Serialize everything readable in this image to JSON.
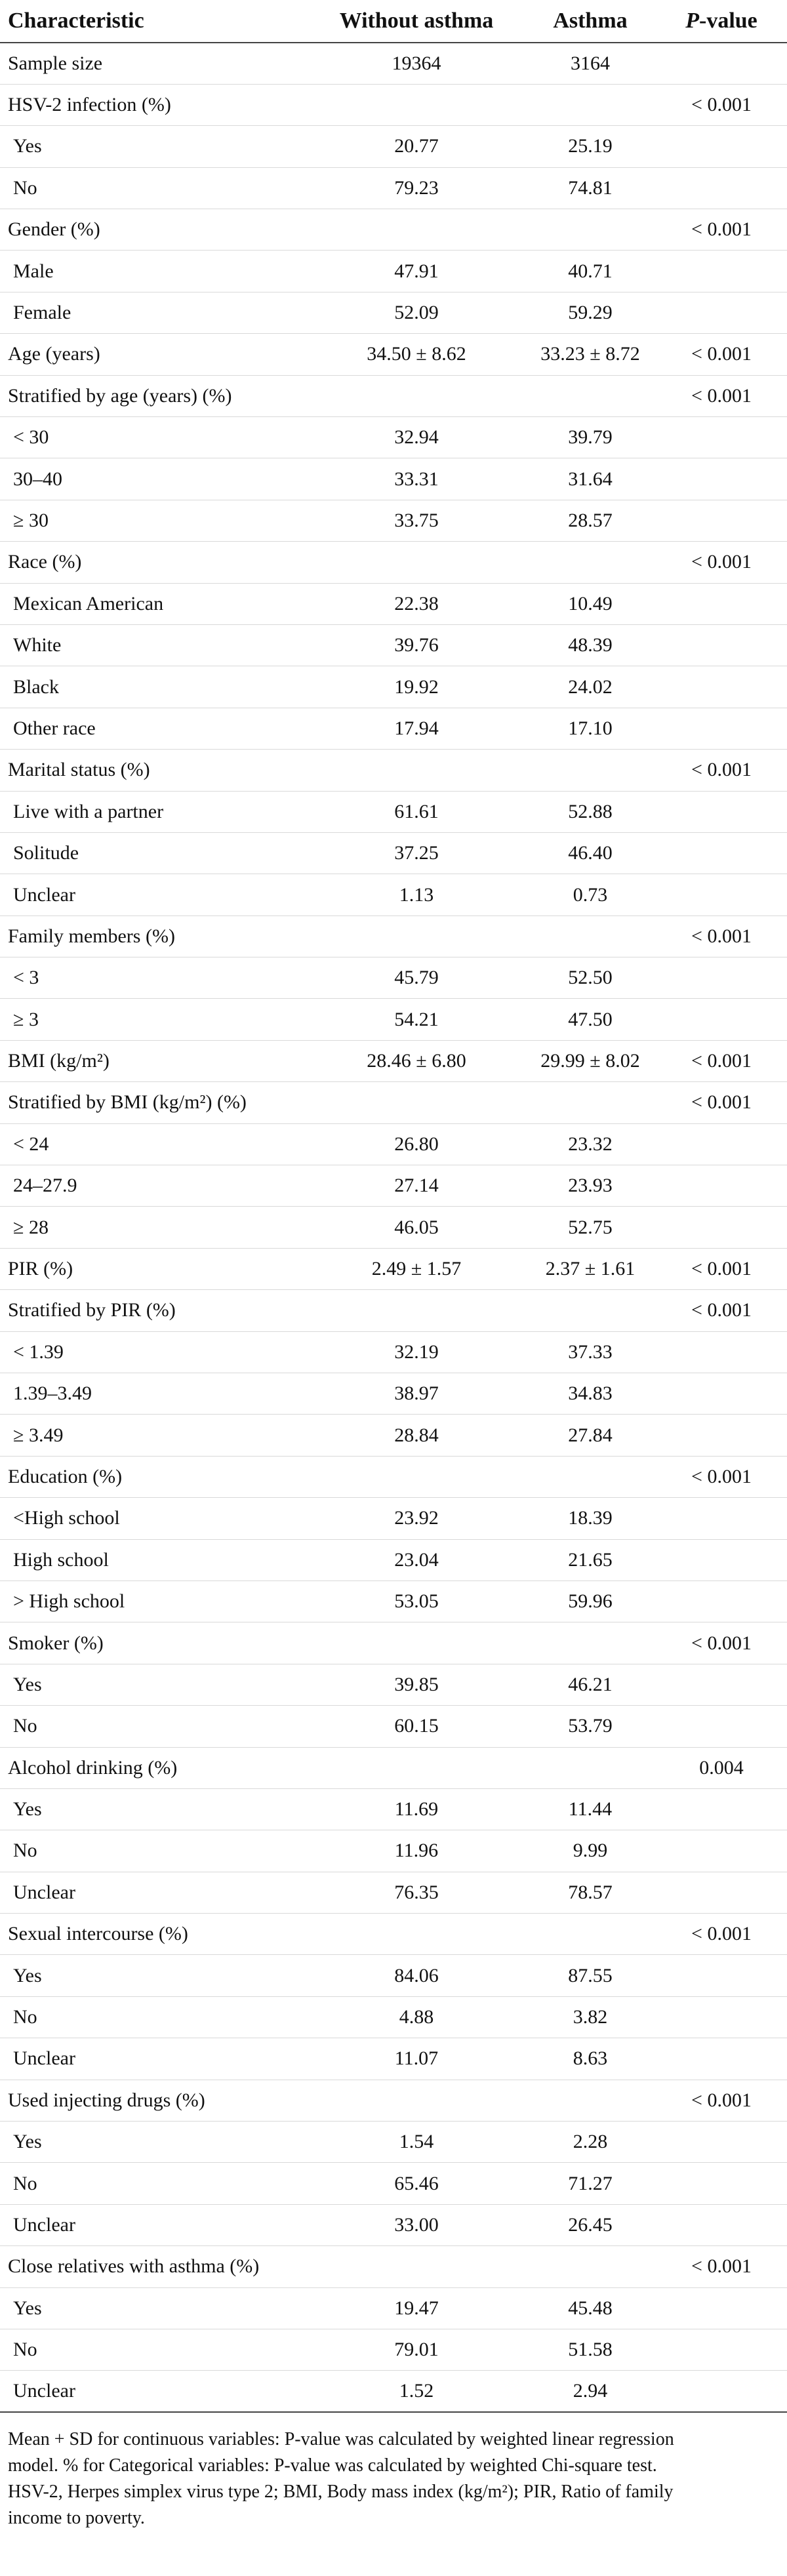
{
  "table": {
    "headers": [
      "Characteristic",
      "Without asthma",
      "Asthma",
      "-value"
    ],
    "header_p_prefix": "P",
    "rows": [
      {
        "label": "Sample size",
        "without": "19364",
        "asthma": "3164",
        "p": ""
      },
      {
        "label": "HSV-2 infection (%)",
        "without": "",
        "asthma": "",
        "p": "< 0.001"
      },
      {
        "label": "Yes",
        "without": "20.77",
        "asthma": "25.19",
        "p": "",
        "sub": true
      },
      {
        "label": "No",
        "without": "79.23",
        "asthma": "74.81",
        "p": "",
        "sub": true
      },
      {
        "label": "Gender (%)",
        "without": "",
        "asthma": "",
        "p": "< 0.001"
      },
      {
        "label": "Male",
        "without": "47.91",
        "asthma": "40.71",
        "p": "",
        "sub": true
      },
      {
        "label": "Female",
        "without": "52.09",
        "asthma": "59.29",
        "p": "",
        "sub": true
      },
      {
        "label": "Age (years)",
        "without": "34.50 ± 8.62",
        "asthma": "33.23 ± 8.72",
        "p": "< 0.001"
      },
      {
        "label": "Stratified by age (years) (%)",
        "without": "",
        "asthma": "",
        "p": "< 0.001"
      },
      {
        "label": "< 30",
        "without": "32.94",
        "asthma": "39.79",
        "p": "",
        "sub": true
      },
      {
        "label": "30–40",
        "without": "33.31",
        "asthma": "31.64",
        "p": "",
        "sub": true
      },
      {
        "label": "≥ 30",
        "without": "33.75",
        "asthma": "28.57",
        "p": "",
        "sub": true
      },
      {
        "label": "Race (%)",
        "without": "",
        "asthma": "",
        "p": "< 0.001"
      },
      {
        "label": "Mexican American",
        "without": "22.38",
        "asthma": "10.49",
        "p": "",
        "sub": true
      },
      {
        "label": "White",
        "without": "39.76",
        "asthma": "48.39",
        "p": "",
        "sub": true
      },
      {
        "label": "Black",
        "without": "19.92",
        "asthma": "24.02",
        "p": "",
        "sub": true
      },
      {
        "label": "Other race",
        "without": "17.94",
        "asthma": "17.10",
        "p": "",
        "sub": true
      },
      {
        "label": "Marital status (%)",
        "without": "",
        "asthma": "",
        "p": "< 0.001"
      },
      {
        "label": "Live with a partner",
        "without": "61.61",
        "asthma": "52.88",
        "p": "",
        "sub": true
      },
      {
        "label": "Solitude",
        "without": "37.25",
        "asthma": "46.40",
        "p": "",
        "sub": true
      },
      {
        "label": "Unclear",
        "without": "1.13",
        "asthma": "0.73",
        "p": "",
        "sub": true
      },
      {
        "label": "Family members (%)",
        "without": "",
        "asthma": "",
        "p": "< 0.001"
      },
      {
        "label": "< 3",
        "without": "45.79",
        "asthma": "52.50",
        "p": "",
        "sub": true
      },
      {
        "label": "≥ 3",
        "without": "54.21",
        "asthma": "47.50",
        "p": "",
        "sub": true
      },
      {
        "label": "BMI (kg/m²)",
        "without": "28.46 ± 6.80",
        "asthma": "29.99 ± 8.02",
        "p": "< 0.001"
      },
      {
        "label": "Stratified by BMI (kg/m²) (%)",
        "without": "",
        "asthma": "",
        "p": "< 0.001"
      },
      {
        "label": "< 24",
        "without": "26.80",
        "asthma": "23.32",
        "p": "",
        "sub": true
      },
      {
        "label": "24–27.9",
        "without": "27.14",
        "asthma": "23.93",
        "p": "",
        "sub": true
      },
      {
        "label": "≥ 28",
        "without": "46.05",
        "asthma": "52.75",
        "p": "",
        "sub": true
      },
      {
        "label": "PIR (%)",
        "without": "2.49 ± 1.57",
        "asthma": "2.37 ± 1.61",
        "p": "< 0.001"
      },
      {
        "label": "Stratified by PIR (%)",
        "without": "",
        "asthma": "",
        "p": "< 0.001"
      },
      {
        "label": "< 1.39",
        "without": "32.19",
        "asthma": "37.33",
        "p": "",
        "sub": true
      },
      {
        "label": "1.39–3.49",
        "without": "38.97",
        "asthma": "34.83",
        "p": "",
        "sub": true
      },
      {
        "label": "≥ 3.49",
        "without": "28.84",
        "asthma": "27.84",
        "p": "",
        "sub": true
      },
      {
        "label": "Education (%)",
        "without": "",
        "asthma": "",
        "p": "< 0.001"
      },
      {
        "label": "<High school",
        "without": "23.92",
        "asthma": "18.39",
        "p": "",
        "sub": true
      },
      {
        "label": "High school",
        "without": "23.04",
        "asthma": "21.65",
        "p": "",
        "sub": true
      },
      {
        "label": "> High school",
        "without": "53.05",
        "asthma": "59.96",
        "p": "",
        "sub": true
      },
      {
        "label": "Smoker (%)",
        "without": "",
        "asthma": "",
        "p": "< 0.001"
      },
      {
        "label": "Yes",
        "without": "39.85",
        "asthma": "46.21",
        "p": "",
        "sub": true
      },
      {
        "label": "No",
        "without": "60.15",
        "asthma": "53.79",
        "p": "",
        "sub": true
      },
      {
        "label": "Alcohol drinking (%)",
        "without": "",
        "asthma": "",
        "p": "0.004"
      },
      {
        "label": "Yes",
        "without": "11.69",
        "asthma": "11.44",
        "p": "",
        "sub": true
      },
      {
        "label": "No",
        "without": "11.96",
        "asthma": "9.99",
        "p": "",
        "sub": true
      },
      {
        "label": "Unclear",
        "without": "76.35",
        "asthma": "78.57",
        "p": "",
        "sub": true
      },
      {
        "label": "Sexual intercourse (%)",
        "without": "",
        "asthma": "",
        "p": "< 0.001"
      },
      {
        "label": "Yes",
        "without": "84.06",
        "asthma": "87.55",
        "p": "",
        "sub": true
      },
      {
        "label": "No",
        "without": "4.88",
        "asthma": "3.82",
        "p": "",
        "sub": true
      },
      {
        "label": "Unclear",
        "without": "11.07",
        "asthma": "8.63",
        "p": "",
        "sub": true
      },
      {
        "label": "Used injecting drugs (%)",
        "without": "",
        "asthma": "",
        "p": "< 0.001"
      },
      {
        "label": "Yes",
        "without": "1.54",
        "asthma": "2.28",
        "p": "",
        "sub": true
      },
      {
        "label": "No",
        "without": "65.46",
        "asthma": "71.27",
        "p": "",
        "sub": true
      },
      {
        "label": "Unclear",
        "without": "33.00",
        "asthma": "26.45",
        "p": "",
        "sub": true
      },
      {
        "label": "Close relatives with asthma (%)",
        "without": "",
        "asthma": "",
        "p": "< 0.001"
      },
      {
        "label": "Yes",
        "without": "19.47",
        "asthma": "45.48",
        "p": "",
        "sub": true
      },
      {
        "label": "No",
        "without": "79.01",
        "asthma": "51.58",
        "p": "",
        "sub": true
      },
      {
        "label": "Unclear",
        "without": "1.52",
        "asthma": "2.94",
        "p": "",
        "sub": true
      }
    ]
  },
  "footnote": {
    "line1": "Mean + SD for continuous variables: P-value was calculated by weighted linear regression",
    "line2": "model. % for Categorical variables: P-value was calculated by weighted Chi-square test.",
    "line3": "HSV-2, Herpes simplex virus type 2; BMI, Body mass index (kg/m²); PIR, Ratio of family",
    "line4": "income to poverty."
  }
}
